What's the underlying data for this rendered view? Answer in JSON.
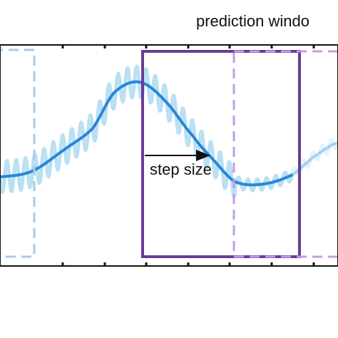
{
  "title": "prediction windo",
  "annotation": "step size"
}
